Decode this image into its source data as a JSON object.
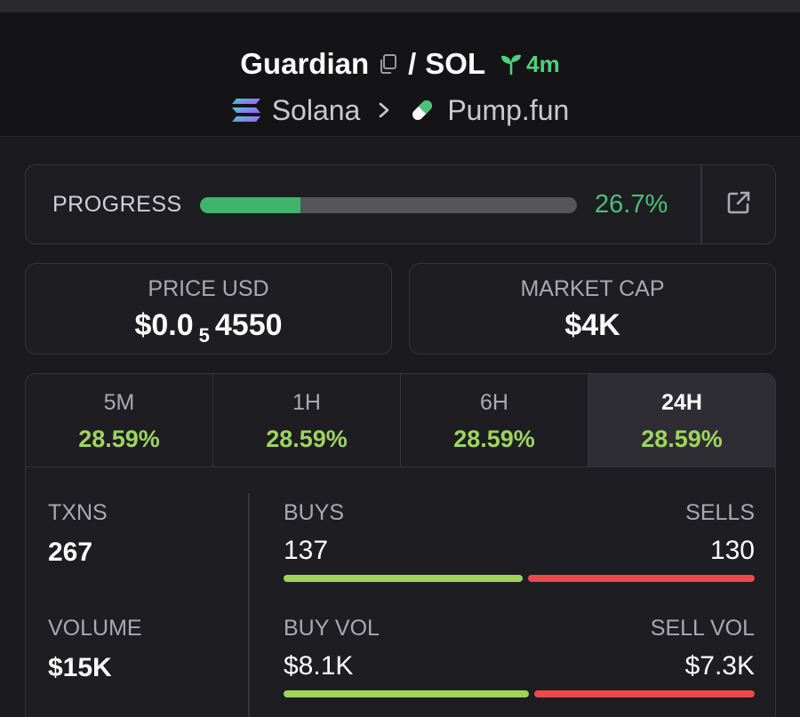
{
  "header": {
    "token_name": "Guardian",
    "pair_separator": "/",
    "quote": "SOL",
    "age": "4m",
    "chain": "Solana",
    "dex": "Pump.fun"
  },
  "progress": {
    "label": "PROGRESS",
    "value_text": "26.7%",
    "fraction": 0.267
  },
  "price": {
    "label": "PRICE USD",
    "prefix": "$0.0",
    "zeros": "5",
    "digits": "4550"
  },
  "market_cap": {
    "label": "MARKET CAP",
    "value": "$4K"
  },
  "timeframes": [
    {
      "label": "5M",
      "change": "28.59%"
    },
    {
      "label": "1H",
      "change": "28.59%"
    },
    {
      "label": "6H",
      "change": "28.59%"
    },
    {
      "label": "24H",
      "change": "28.59%"
    }
  ],
  "active_timeframe": "24H",
  "txns": {
    "label": "TXNS",
    "value": "267"
  },
  "volume": {
    "label": "VOLUME",
    "value": "$15K"
  },
  "buys": {
    "label": "BUYS",
    "value": "137",
    "count": 137
  },
  "sells": {
    "label": "SELLS",
    "value": "130",
    "count": 130
  },
  "buy_vol": {
    "label": "BUY VOL",
    "value": "$8.1K",
    "amount": 8.1
  },
  "sell_vol": {
    "label": "SELL VOL",
    "value": "$7.3K",
    "amount": 7.3
  },
  "colors": {
    "positive": "#9fd45c",
    "negative": "#ea4a4a",
    "progress": "#3fb56b",
    "age": "#4ed17a"
  },
  "icons": [
    "copy-icon",
    "sprout-icon",
    "solana-icon",
    "chevron-right-icon",
    "pill-icon",
    "external-link-icon"
  ]
}
